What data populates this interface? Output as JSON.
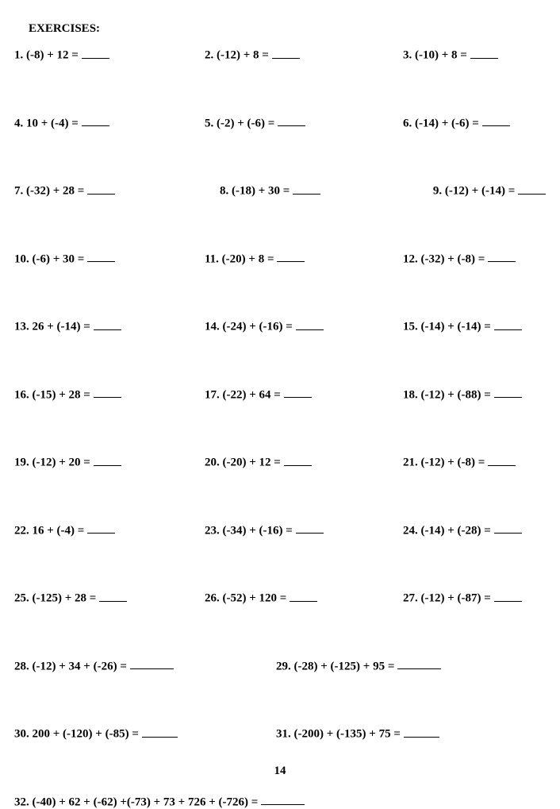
{
  "header": "EXERCISES:",
  "page_number": "14",
  "exercises": {
    "p1": "1.  (-8) + 12 =",
    "p2": "2.  (-12) + 8 =",
    "p3": "3.  (-10) + 8 =",
    "p4": "4.  10 + (-4) =",
    "p5": "5.  (-2) + (-6) =",
    "p6": "6.  (-14) + (-6) =",
    "p7": "7.  (-32) + 28 =",
    "p8": "8.  (-18) + 30 =",
    "p9": "9.  (-12) + (-14) =",
    "p10": "10.  (-6) + 30 =",
    "p11": "11.  (-20) + 8 =",
    "p12": "12.  (-32) + (-8) =",
    "p13": "13.  26 + (-14) =",
    "p14": "14.  (-24) + (-16) =",
    "p15": "15.  (-14) + (-14) =",
    "p16": "16.  (-15) + 28 =",
    "p17": "17.  (-22) + 64 =",
    "p18": "18.  (-12) + (-88) =",
    "p19": "19.  (-12) + 20 =",
    "p20": "20.  (-20) + 12 =",
    "p21": "21.  (-12) + (-8) =",
    "p22": "22.  16 + (-4) =",
    "p23": "23.  (-34) + (-16) =",
    "p24": "24.  (-14) + (-28) =",
    "p25": "25.  (-125) + 28 =",
    "p26": "26.  (-52) + 120 =",
    "p27": "27.  (-12) + (-87) =",
    "p28": "28.  (-12) + 34 + (-26) =",
    "p29": "29.   (-28) + (-125) + 95 =",
    "p30": "30.   200 + (-120) + (-85) =",
    "p31": "31.  (-200) + (-135) + 75 =",
    "p32": "32.  (-40) + 62 + (-62) +(-73) + 73 + 726 + (-726) ="
  }
}
